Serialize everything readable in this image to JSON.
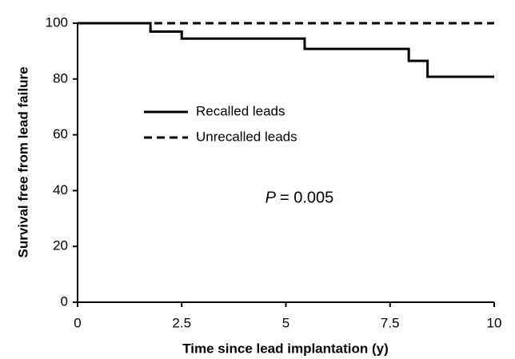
{
  "chart_data": {
    "type": "step",
    "xlabel": "Time since lead implantation (y)",
    "ylabel": "Survival free from lead failure",
    "annotation_symbol": "P",
    "annotation_text": "= 0.005",
    "xlim": [
      0,
      10
    ],
    "xticks": [
      0,
      2.5,
      5,
      7.5,
      10
    ],
    "ylim": [
      0,
      100
    ],
    "yticks": [
      0,
      20,
      40,
      60,
      80,
      100
    ],
    "series": [
      {
        "name": "Recalled leads",
        "color": "#000000",
        "dash": "solid",
        "x": [
          0,
          1.75,
          2.5,
          5.45,
          7.95,
          8.4,
          10
        ],
        "values": [
          100,
          97,
          94.5,
          90.8,
          86.5,
          80.8,
          80.8
        ]
      },
      {
        "name": "Unrecalled leads",
        "color": "#000000",
        "dash": "dashed",
        "x": [
          0,
          10
        ],
        "values": [
          100,
          100
        ]
      }
    ]
  }
}
